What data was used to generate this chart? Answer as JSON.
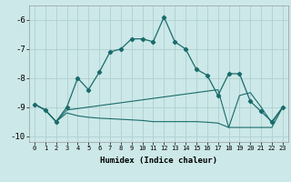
{
  "xlabel": "Humidex (Indice chaleur)",
  "xlim": [
    -0.5,
    23.5
  ],
  "ylim": [
    -10.2,
    -5.5
  ],
  "yticks": [
    -10,
    -9,
    -8,
    -7,
    -6
  ],
  "xticks": [
    0,
    1,
    2,
    3,
    4,
    5,
    6,
    7,
    8,
    9,
    10,
    11,
    12,
    13,
    14,
    15,
    16,
    17,
    18,
    19,
    20,
    21,
    22,
    23
  ],
  "bg_color": "#cce8e8",
  "line_color": "#1a6b6b",
  "grid_color": "#b0d0d0",
  "line1_x": [
    0,
    1,
    2,
    3,
    4,
    5,
    6,
    7,
    8,
    9,
    10,
    11,
    12,
    13,
    14,
    15,
    16,
    17,
    18,
    19,
    20,
    21,
    22,
    23
  ],
  "line1_y": [
    -8.9,
    -9.1,
    -9.5,
    -9.0,
    -8.0,
    -8.4,
    -7.8,
    -7.1,
    -7.0,
    -6.65,
    -6.65,
    -6.75,
    -5.9,
    -6.75,
    -7.0,
    -7.7,
    -7.9,
    -8.6,
    -7.85,
    -7.85,
    -8.8,
    -9.15,
    -9.5,
    -9.0
  ],
  "line2_x": [
    0,
    1,
    2,
    3,
    4,
    5,
    6,
    7,
    8,
    9,
    10,
    11,
    12,
    13,
    14,
    15,
    16,
    17,
    18,
    19,
    20,
    21,
    22,
    23
  ],
  "line2_y": [
    -8.9,
    -9.1,
    -9.5,
    -9.1,
    -9.05,
    -9.0,
    -8.95,
    -8.9,
    -8.85,
    -8.8,
    -8.75,
    -8.7,
    -8.65,
    -8.6,
    -8.55,
    -8.5,
    -8.45,
    -8.4,
    -9.7,
    -8.6,
    -8.5,
    -9.0,
    -9.55,
    -9.0
  ],
  "line3_x": [
    0,
    1,
    2,
    3,
    4,
    5,
    6,
    7,
    8,
    9,
    10,
    11,
    12,
    13,
    14,
    15,
    16,
    17,
    18,
    19,
    20,
    21,
    22,
    23
  ],
  "line3_y": [
    -8.9,
    -9.1,
    -9.5,
    -9.2,
    -9.3,
    -9.35,
    -9.38,
    -9.4,
    -9.42,
    -9.44,
    -9.46,
    -9.5,
    -9.5,
    -9.5,
    -9.5,
    -9.5,
    -9.52,
    -9.55,
    -9.7,
    -9.7,
    -9.7,
    -9.7,
    -9.7,
    -9.0
  ]
}
